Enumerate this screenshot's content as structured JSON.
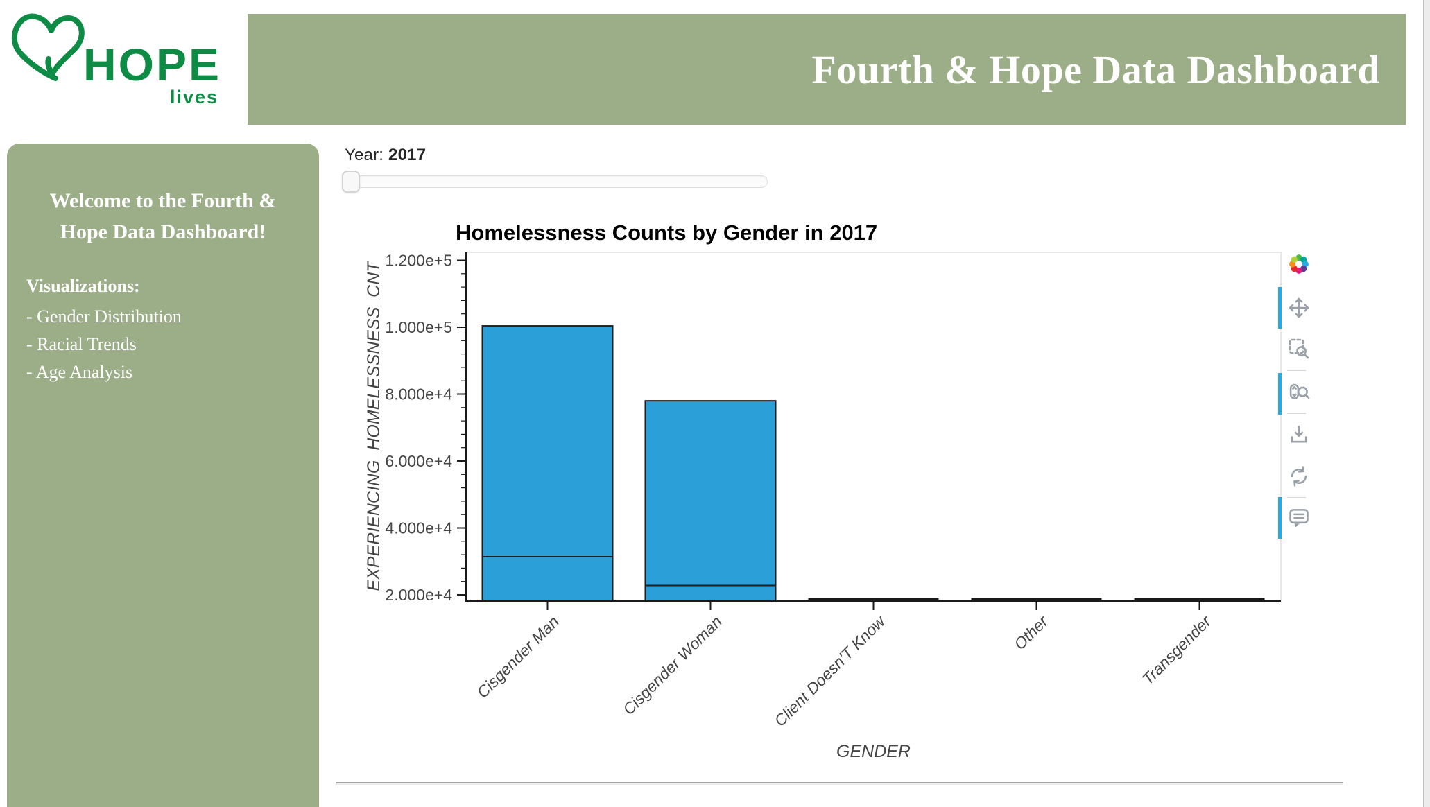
{
  "colors": {
    "sage_green": "#9cae88",
    "logo_green": "#0e8b45",
    "bar_blue": "#2b9fd8",
    "tool_active_blue": "#26aae1"
  },
  "logo": {
    "brand": "HOPE",
    "tagline": "lives"
  },
  "header": {
    "title": "Fourth & Hope Data Dashboard"
  },
  "sidebar": {
    "welcome_line1": "Welcome to the Fourth &",
    "welcome_line2": "Hope Data Dashboard!",
    "section_title": "Visualizations:",
    "items": [
      {
        "label": "- Gender Distribution"
      },
      {
        "label": "- Racial Trends"
      },
      {
        "label": "- Age Analysis"
      }
    ]
  },
  "controls": {
    "year_label": "Year:",
    "year_value": "2017",
    "slider_handle_position_pct": 0
  },
  "chart_data": {
    "type": "bar",
    "title": "Homelessness Counts by Gender in 2017",
    "xlabel": "GENDER",
    "ylabel": "EXPERIENCING_HOMELESSNESS_CNT",
    "categories": [
      "Cisgender Man",
      "Cisgender Woman",
      "Client Doesn'T Know",
      "Other",
      "Transgender"
    ],
    "values": [
      100400,
      78000,
      0,
      0,
      0
    ],
    "inner_divider_values": [
      31400,
      22800,
      null,
      null,
      null
    ],
    "values_note": "last three bars fall below the y-axis start (2.000e+4) and render flat at the baseline",
    "ylim": [
      18000,
      122500
    ],
    "yticks": [
      20000,
      40000,
      60000,
      80000,
      100000,
      120000
    ],
    "ytick_labels": [
      "2.000e+4",
      "4.000e+4",
      "6.000e+4",
      "8.000e+4",
      "1.000e+5",
      "1.200e+5"
    ],
    "minor_tick_step": 4000,
    "grid": false,
    "legend_position": null,
    "bar_color": "#2b9fd8",
    "bar_outline": "#1f1f1f"
  },
  "toolbar": {
    "logo_colors": [
      "#4cb648",
      "#00a79d",
      "#29abe2",
      "#5b3a93",
      "#e3197f",
      "#e8262d",
      "#f68b1f",
      "#aed136"
    ],
    "tools": [
      {
        "id": "pan",
        "active": true
      },
      {
        "id": "box-zoom",
        "active": false
      },
      {
        "id": "wheel-zoom",
        "active": true
      },
      {
        "id": "save",
        "active": false
      },
      {
        "id": "reset",
        "active": false
      },
      {
        "id": "hover",
        "active": true
      }
    ]
  }
}
